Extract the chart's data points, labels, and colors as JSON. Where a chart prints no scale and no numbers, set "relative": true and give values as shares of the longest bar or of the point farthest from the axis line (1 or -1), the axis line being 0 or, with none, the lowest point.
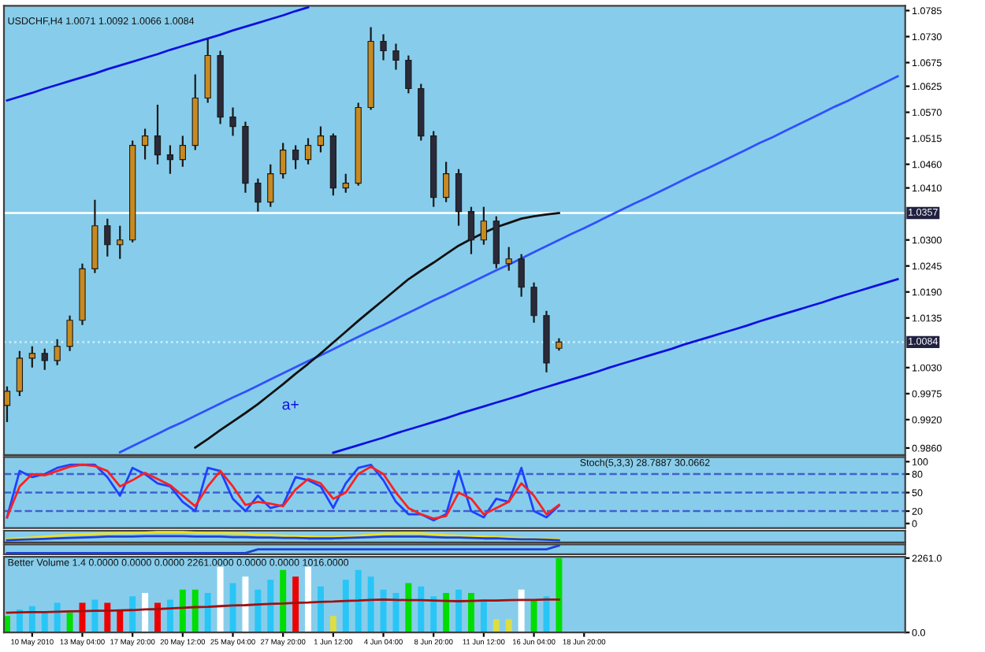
{
  "chart_data": [
    {
      "type": "candlestick",
      "title": "USDCHF,H4 1.0071 1.0092 1.0066 1.0084",
      "tick_labels": "y",
      "ylim": [
        0.9845,
        1.0795
      ],
      "yticks": [
        {
          "value": 1.0785,
          "label": "1.0785"
        },
        {
          "value": 1.073,
          "label": "1.0730"
        },
        {
          "value": 1.0675,
          "label": "1.0675"
        },
        {
          "value": 1.0625,
          "label": "1.0625"
        },
        {
          "value": 1.057,
          "label": "1.0570"
        },
        {
          "value": 1.0515,
          "label": "1.0515"
        },
        {
          "value": 1.046,
          "label": "1.0460"
        },
        {
          "value": 1.041,
          "label": "1.0410"
        },
        {
          "value": 1.03,
          "label": "1.0300"
        },
        {
          "value": 1.0245,
          "label": "1.0245"
        },
        {
          "value": 1.019,
          "label": "1.0190"
        },
        {
          "value": 1.0135,
          "label": "1.0135"
        },
        {
          "value": 1.003,
          "label": "1.0030"
        },
        {
          "value": 0.9975,
          "label": "0.9975"
        },
        {
          "value": 0.992,
          "label": "0.9920"
        },
        {
          "value": 0.986,
          "label": "0.9860"
        }
      ],
      "categories": [
        null,
        null,
        null,
        null,
        null,
        null,
        null,
        null,
        null,
        null,
        null,
        null,
        null,
        null,
        null,
        null,
        null,
        null,
        null,
        null,
        null,
        null,
        null,
        null,
        null,
        null,
        null,
        null,
        null,
        null,
        null,
        null,
        null,
        null,
        null,
        null,
        null,
        null,
        null,
        null,
        null,
        null,
        null,
        null,
        null,
        null,
        null,
        null,
        null,
        null,
        null,
        null,
        null,
        null,
        null,
        null,
        null,
        null,
        null,
        null,
        null,
        null,
        null,
        null,
        null,
        null,
        null,
        null,
        null,
        null,
        null,
        null
      ],
      "ohlc": [
        [
          0.995,
          0.999,
          0.9915,
          0.998
        ],
        [
          0.998,
          1.0065,
          0.997,
          1.005
        ],
        [
          1.005,
          1.0075,
          1.003,
          1.006
        ],
        [
          1.006,
          1.007,
          1.0025,
          1.0045
        ],
        [
          1.0045,
          1.009,
          1.0035,
          1.0075
        ],
        [
          1.0075,
          1.014,
          1.0065,
          1.013
        ],
        [
          1.013,
          1.025,
          1.012,
          1.0239
        ],
        [
          1.0239,
          1.0385,
          1.023,
          1.033
        ],
        [
          1.033,
          1.0345,
          1.0265,
          1.029
        ],
        [
          1.029,
          1.033,
          1.026,
          1.03
        ],
        [
          1.03,
          1.051,
          1.0295,
          1.05
        ],
        [
          1.05,
          1.0535,
          1.047,
          1.052
        ],
        [
          1.052,
          1.0586,
          1.046,
          1.048
        ],
        [
          1.048,
          1.05,
          1.044,
          1.047
        ],
        [
          1.047,
          1.052,
          1.0455,
          1.05
        ],
        [
          1.05,
          1.065,
          1.049,
          1.06
        ],
        [
          1.06,
          1.0725,
          1.059,
          1.069
        ],
        [
          1.069,
          1.07,
          1.0545,
          1.056
        ],
        [
          1.056,
          1.058,
          1.052,
          1.054
        ],
        [
          1.054,
          1.055,
          1.04,
          1.042
        ],
        [
          1.042,
          1.043,
          1.036,
          1.038
        ],
        [
          1.038,
          1.046,
          1.037,
          1.044
        ],
        [
          1.044,
          1.0505,
          1.043,
          1.049
        ],
        [
          1.049,
          1.05,
          1.045,
          1.047
        ],
        [
          1.047,
          1.0515,
          1.046,
          1.05
        ],
        [
          1.05,
          1.054,
          1.0485,
          1.052
        ],
        [
          1.052,
          1.0525,
          1.0394,
          1.041
        ],
        [
          1.041,
          1.044,
          1.04,
          1.042
        ],
        [
          1.042,
          1.059,
          1.0415,
          1.058
        ],
        [
          1.058,
          1.075,
          1.0575,
          1.072
        ],
        [
          1.072,
          1.0735,
          1.068,
          1.07
        ],
        [
          1.07,
          1.0715,
          1.066,
          1.068
        ],
        [
          1.068,
          1.069,
          1.061,
          1.062
        ],
        [
          1.062,
          1.063,
          1.051,
          1.052
        ],
        [
          1.052,
          1.053,
          1.037,
          1.039
        ],
        [
          1.039,
          1.0465,
          1.038,
          1.044
        ],
        [
          1.044,
          1.045,
          1.033,
          1.036
        ],
        [
          1.036,
          1.037,
          1.027,
          1.03
        ],
        [
          1.03,
          1.037,
          1.029,
          1.034
        ],
        [
          1.034,
          1.035,
          1.024,
          1.025
        ],
        [
          1.025,
          1.0285,
          1.0235,
          1.026
        ],
        [
          1.026,
          1.027,
          1.018,
          1.02
        ],
        [
          1.02,
          1.021,
          1.0125,
          1.014
        ],
        [
          1.014,
          1.015,
          1.002,
          1.004
        ],
        [
          1.0071,
          1.0092,
          1.0066,
          1.0084
        ],
        null,
        null,
        null,
        null,
        null,
        null,
        null,
        null,
        null,
        null,
        null,
        null,
        null,
        null,
        null,
        null,
        null,
        null,
        null,
        null,
        null,
        null,
        null,
        null,
        null,
        null,
        null
      ],
      "series": [
        {
          "type": "line",
          "color": "#1010e0",
          "values": [
            1.0595,
            1.0603,
            1.0611,
            1.062,
            1.0628,
            1.0636,
            1.0644,
            1.0652,
            1.0661,
            1.0669,
            1.0677,
            1.0685,
            1.0693,
            1.0702,
            1.071,
            1.0718,
            1.0726,
            1.0734,
            1.0743,
            1.0751,
            1.0759,
            1.0767,
            1.0775,
            1.0784,
            1.0792,
            null,
            null,
            null,
            null,
            null,
            null,
            null,
            null,
            null,
            null,
            null,
            null,
            null,
            null,
            null,
            null,
            null,
            null,
            null,
            null,
            null,
            null,
            null,
            null,
            null,
            null,
            null,
            null,
            null,
            null,
            null,
            null,
            null,
            null,
            null,
            null,
            null,
            null,
            null,
            null,
            null,
            null,
            null,
            null,
            null,
            null,
            null
          ]
        },
        {
          "type": "line",
          "color": "#3050ff",
          "values": [
            null,
            null,
            null,
            null,
            null,
            null,
            null,
            null,
            null,
            0.9851,
            0.9864,
            0.9877,
            0.989,
            0.9903,
            0.9915,
            0.9928,
            0.9941,
            0.9954,
            0.9967,
            0.9979,
            0.9992,
            1.0005,
            1.0018,
            1.0031,
            1.0044,
            1.0056,
            1.0069,
            1.0082,
            1.0095,
            1.0108,
            1.012,
            1.0133,
            1.0146,
            1.0159,
            1.0172,
            1.0184,
            1.0197,
            1.021,
            1.0223,
            1.0236,
            1.0248,
            1.0261,
            1.0274,
            1.0287,
            1.03,
            1.0313,
            1.0325,
            1.0338,
            1.0351,
            1.0364,
            1.0377,
            1.0389,
            1.0402,
            1.0415,
            1.0428,
            1.0441,
            1.0453,
            1.0466,
            1.0479,
            1.0492,
            1.0505,
            1.0517,
            1.053,
            1.0543,
            1.0556,
            1.0569,
            1.0582,
            1.0594,
            1.0607,
            1.062,
            1.0633,
            1.0646
          ]
        },
        {
          "type": "line",
          "color": "#1010e0",
          "values": [
            null,
            null,
            null,
            null,
            null,
            null,
            null,
            null,
            null,
            null,
            null,
            null,
            null,
            null,
            null,
            null,
            null,
            null,
            null,
            null,
            null,
            null,
            null,
            null,
            null,
            null,
            0.985,
            0.9858,
            0.9866,
            0.9874,
            0.9882,
            0.9891,
            0.9899,
            0.9907,
            0.9915,
            0.9923,
            0.9932,
            0.994,
            0.9948,
            0.9956,
            0.9964,
            0.9972,
            0.9981,
            0.9989,
            0.9997,
            1.0005,
            1.0013,
            1.0021,
            1.003,
            1.0038,
            1.0046,
            1.0054,
            1.0062,
            1.007,
            1.0079,
            1.0087,
            1.0095,
            1.0103,
            1.0111,
            1.0119,
            1.0128,
            1.0136,
            1.0144,
            1.0152,
            1.016,
            1.0168,
            1.0177,
            1.0185,
            1.0193,
            1.0201,
            1.0209,
            1.0217
          ]
        },
        {
          "type": "line",
          "color": "#101010",
          "values": [
            null,
            null,
            null,
            null,
            null,
            null,
            null,
            null,
            null,
            null,
            null,
            null,
            null,
            null,
            null,
            0.9861,
            0.9879,
            0.9898,
            0.9916,
            0.9934,
            0.9953,
            0.9974,
            0.9995,
            1.0017,
            1.0038,
            1.006,
            1.0083,
            1.0106,
            1.0129,
            1.0151,
            1.0173,
            1.0195,
            1.0217,
            1.0235,
            1.0252,
            1.027,
            1.0288,
            1.0302,
            1.0315,
            1.0327,
            1.0336,
            1.0345,
            1.035,
            1.0354,
            1.0357,
            null,
            null,
            null,
            null,
            null,
            null,
            null,
            null,
            null,
            null,
            null,
            null,
            null,
            null,
            null,
            null,
            null,
            null,
            null,
            null,
            null,
            null,
            null,
            null,
            null,
            null,
            null
          ]
        }
      ],
      "ref_lines": [
        {
          "axis": "y",
          "value": 1.0357,
          "label": "1.0357",
          "color": "#ffffff",
          "line_style": "solid"
        },
        {
          "axis": "y",
          "value": 1.0084,
          "label": "1.0084",
          "color": "#d8eef8",
          "line_style": "dotted"
        }
      ],
      "annotations": [
        "a+"
      ]
    },
    {
      "type": "line",
      "title": "Stoch(5,3,3) 28.7887 30.0662",
      "tick_labels": "y",
      "ylim": [
        -7.5,
        107.5
      ],
      "yticks": [
        0,
        20,
        50,
        80,
        100
      ],
      "categories": [
        null,
        null,
        null,
        null,
        null,
        null,
        null,
        null,
        null,
        null,
        null,
        null,
        null,
        null,
        null,
        null,
        null,
        null,
        null,
        null,
        null,
        null,
        null,
        null,
        null,
        null,
        null,
        null,
        null,
        null,
        null,
        null,
        null,
        null,
        null,
        null,
        null,
        null,
        null,
        null,
        null,
        null,
        null,
        null,
        null,
        null,
        null,
        null,
        null,
        null,
        null,
        null,
        null,
        null,
        null,
        null,
        null,
        null,
        null,
        null,
        null,
        null,
        null,
        null,
        null,
        null,
        null,
        null,
        null,
        null,
        null,
        null
      ],
      "series": [
        {
          "color": "#2040ff",
          "values": [
            10,
            85,
            75,
            80,
            90,
            95,
            95,
            95,
            75,
            45,
            90,
            80,
            65,
            60,
            35,
            20,
            90,
            85,
            40,
            20,
            45,
            25,
            30,
            75,
            70,
            60,
            25,
            65,
            90,
            95,
            70,
            35,
            15,
            15,
            5,
            15,
            85,
            20,
            10,
            40,
            35,
            90,
            20,
            10,
            29,
            null,
            null,
            null,
            null,
            null,
            null,
            null,
            null,
            null,
            null,
            null,
            null,
            null,
            null,
            null,
            null,
            null,
            null,
            null,
            null,
            null,
            null,
            null,
            null,
            null,
            null,
            null
          ]
        },
        {
          "color": "#ff2020",
          "values": [
            10,
            60,
            80,
            78,
            85,
            92,
            95,
            93,
            85,
            60,
            70,
            82,
            72,
            62,
            45,
            28,
            60,
            85,
            60,
            30,
            35,
            32,
            28,
            55,
            72,
            65,
            40,
            50,
            80,
            92,
            80,
            50,
            25,
            15,
            8,
            12,
            50,
            40,
            15,
            25,
            35,
            65,
            45,
            15,
            30,
            null,
            null,
            null,
            null,
            null,
            null,
            null,
            null,
            null,
            null,
            null,
            null,
            null,
            null,
            null,
            null,
            null,
            null,
            null,
            null,
            null,
            null,
            null,
            null,
            null,
            null,
            null
          ]
        }
      ],
      "ref_lines": [
        {
          "axis": "y",
          "value": 80,
          "color": "#4060d0",
          "line_style": "dashed"
        },
        {
          "axis": "y",
          "value": 50,
          "color": "#4060d0",
          "line_style": "dashed"
        },
        {
          "axis": "y",
          "value": 20,
          "color": "#4060d0",
          "line_style": "dashed"
        }
      ]
    },
    {
      "type": "line",
      "relative": true,
      "tick_labels": false,
      "categories": [
        null,
        null,
        null,
        null,
        null,
        null,
        null,
        null,
        null,
        null,
        null,
        null,
        null,
        null,
        null,
        null,
        null,
        null,
        null,
        null,
        null,
        null,
        null,
        null,
        null,
        null,
        null,
        null,
        null,
        null,
        null,
        null,
        null,
        null,
        null,
        null,
        null,
        null,
        null,
        null,
        null,
        null,
        null,
        null,
        null,
        null,
        null,
        null,
        null,
        null,
        null,
        null,
        null,
        null,
        null,
        null,
        null,
        null,
        null,
        null,
        null,
        null,
        null,
        null,
        null,
        null,
        null,
        null,
        null,
        null,
        null,
        null
      ],
      "series": [
        {
          "color": "#f0e020",
          "values": [
            0.2,
            0.3,
            0.4,
            0.5,
            0.6,
            0.7,
            0.75,
            0.8,
            0.85,
            0.9,
            0.9,
            0.95,
            1,
            1,
            1,
            0.95,
            0.9,
            0.9,
            0.85,
            0.8,
            0.7,
            0.65,
            0.6,
            0.55,
            0.5,
            0.45,
            0.45,
            0.5,
            0.6,
            0.7,
            0.8,
            0.85,
            0.9,
            0.85,
            0.75,
            0.65,
            0.6,
            0.55,
            0.5,
            0.45,
            0.4,
            0.35,
            0.3,
            0.25,
            0.2,
            null,
            null,
            null,
            null,
            null,
            null,
            null,
            null,
            null,
            null,
            null,
            null,
            null,
            null,
            null,
            null,
            null,
            null,
            null,
            null,
            null,
            null,
            null,
            null,
            null,
            null,
            null
          ]
        },
        {
          "color": "#2040d0",
          "values": [
            0.1,
            0.15,
            0.2,
            0.25,
            0.3,
            0.35,
            0.4,
            0.45,
            0.5,
            0.5,
            0.5,
            0.55,
            0.55,
            0.55,
            0.55,
            0.5,
            0.5,
            0.5,
            0.45,
            0.45,
            0.4,
            0.4,
            0.35,
            0.35,
            0.3,
            0.3,
            0.3,
            0.35,
            0.4,
            0.45,
            0.5,
            0.5,
            0.5,
            0.5,
            0.45,
            0.4,
            0.4,
            0.35,
            0.3,
            0.3,
            0.25,
            0.2,
            0.2,
            0.15,
            0.1,
            null,
            null,
            null,
            null,
            null,
            null,
            null,
            null,
            null,
            null,
            null,
            null,
            null,
            null,
            null,
            null,
            null,
            null,
            null,
            null,
            null,
            null,
            null,
            null,
            null,
            null,
            null
          ]
        }
      ]
    },
    {
      "type": "line",
      "relative": true,
      "tick_labels": false,
      "categories": [
        null,
        null,
        null,
        null,
        null,
        null,
        null,
        null,
        null,
        null,
        null,
        null,
        null,
        null,
        null,
        null,
        null,
        null,
        null,
        null,
        null,
        null,
        null,
        null,
        null,
        null,
        null,
        null,
        null,
        null,
        null,
        null,
        null,
        null,
        null,
        null,
        null,
        null,
        null,
        null,
        null,
        null,
        null,
        null,
        null,
        null,
        null,
        null,
        null,
        null,
        null,
        null,
        null,
        null,
        null,
        null,
        null,
        null,
        null,
        null,
        null,
        null,
        null,
        null,
        null,
        null,
        null,
        null,
        null,
        null,
        null,
        null
      ],
      "series": [
        {
          "color": "#2040d0",
          "values": [
            0,
            0,
            0,
            0,
            0,
            0,
            0,
            0,
            0,
            0,
            0,
            0,
            0,
            0,
            0,
            0,
            0,
            0,
            0,
            0,
            0.5,
            0.5,
            0.5,
            0.5,
            0.5,
            0.5,
            0.5,
            0.5,
            0.5,
            0.5,
            0.5,
            0.5,
            0.5,
            0.5,
            0.5,
            0.5,
            0.5,
            0.5,
            0.5,
            0.5,
            0.5,
            0.5,
            0.5,
            0.5,
            1,
            null,
            null,
            null,
            null,
            null,
            null,
            null,
            null,
            null,
            null,
            null,
            null,
            null,
            null,
            null,
            null,
            null,
            null,
            null,
            null,
            null,
            null,
            null,
            null,
            null,
            null,
            null
          ]
        }
      ]
    },
    {
      "type": "bar",
      "title": "Better Volume 1.4 0.0000 0.0000 0.0000 2261.0000 0.0000 0.0000 1016.0000",
      "ylim": [
        0,
        2300
      ],
      "yticks": [
        {
          "value": 0,
          "label": "0.0"
        },
        {
          "value": 2261,
          "label": "2261.0"
        }
      ],
      "categories": [
        null,
        null,
        "10 May 2010",
        null,
        null,
        null,
        "13 May 04:00",
        null,
        null,
        null,
        "17 May 20:00",
        null,
        null,
        null,
        "20 May 12:00",
        null,
        null,
        null,
        "25 May 04:00",
        null,
        null,
        null,
        "27 May 20:00",
        null,
        null,
        null,
        "1 Jun 12:00",
        null,
        null,
        null,
        "4 Jun 04:00",
        null,
        null,
        null,
        "8 Jun 20:00",
        null,
        null,
        null,
        "11 Jun 12:00",
        null,
        null,
        null,
        "16 Jun 04:00",
        null,
        null,
        null,
        "18 Jun 20:00",
        null,
        null,
        null,
        null,
        null,
        null,
        null,
        null,
        null,
        null,
        null,
        null,
        null,
        null,
        null,
        null,
        null,
        null,
        null,
        null,
        null,
        null,
        null,
        null,
        null
      ],
      "series": [
        {
          "type": "bar",
          "values": [
            500,
            700,
            800,
            600,
            900,
            600,
            900,
            1000,
            900,
            700,
            1100,
            1200,
            900,
            1000,
            1300,
            1300,
            1200,
            2000,
            1500,
            1700,
            1300,
            1600,
            1900,
            1700,
            2000,
            1400,
            500,
            1600,
            1900,
            1700,
            1300,
            1200,
            1500,
            1400,
            1100,
            1200,
            1300,
            1200,
            1000,
            400,
            400,
            1300,
            1000,
            1100,
            2261,
            null,
            null,
            null,
            null,
            null,
            null,
            null,
            null,
            null,
            null,
            null,
            null,
            null,
            null,
            null,
            null,
            null,
            null,
            null,
            null,
            null,
            null,
            null,
            null,
            null,
            null,
            null
          ],
          "colors": [
            "#00dd00",
            "#29c5f6",
            "#29c5f6",
            "#29c5f6",
            "#29c5f6",
            "#00dd00",
            "#ee0000",
            "#29c5f6",
            "#ee0000",
            "#ee0000",
            "#29c5f6",
            "#ffffff",
            "#ee0000",
            "#29c5f6",
            "#00dd00",
            "#00dd00",
            "#29c5f6",
            "#ffffff",
            "#29c5f6",
            "#ffffff",
            "#29c5f6",
            "#29c5f6",
            "#00dd00",
            "#ee0000",
            "#ffffff",
            "#29c5f6",
            "#dddd44",
            "#29c5f6",
            "#29c5f6",
            "#29c5f6",
            "#29c5f6",
            "#29c5f6",
            "#00dd00",
            "#29c5f6",
            "#29c5f6",
            "#00dd00",
            "#29c5f6",
            "#00dd00",
            "#29c5f6",
            "#dddd44",
            "#dddd44",
            "#ffffff",
            "#00dd00",
            "#29c5f6",
            "#00dd00",
            null,
            null,
            null,
            null,
            null,
            null,
            null,
            null,
            null,
            null,
            null,
            null,
            null,
            null,
            null,
            null,
            null,
            null,
            null,
            null,
            null,
            null,
            null,
            null,
            null,
            null,
            null
          ]
        },
        {
          "type": "line",
          "color": "#a01010",
          "values": [
            600,
            610,
            620,
            620,
            630,
            640,
            650,
            660,
            660,
            670,
            680,
            700,
            710,
            730,
            750,
            770,
            780,
            800,
            820,
            830,
            850,
            870,
            880,
            900,
            910,
            930,
            940,
            960,
            970,
            990,
            1000,
            990,
            980,
            980,
            970,
            960,
            950,
            960,
            970,
            970,
            980,
            990,
            990,
            1000,
            1000,
            null,
            null,
            null,
            null,
            null,
            null,
            null,
            null,
            null,
            null,
            null,
            null,
            null,
            null,
            null,
            null,
            null,
            null,
            null,
            null,
            null,
            null,
            null,
            null,
            null,
            null,
            null
          ]
        }
      ]
    }
  ]
}
